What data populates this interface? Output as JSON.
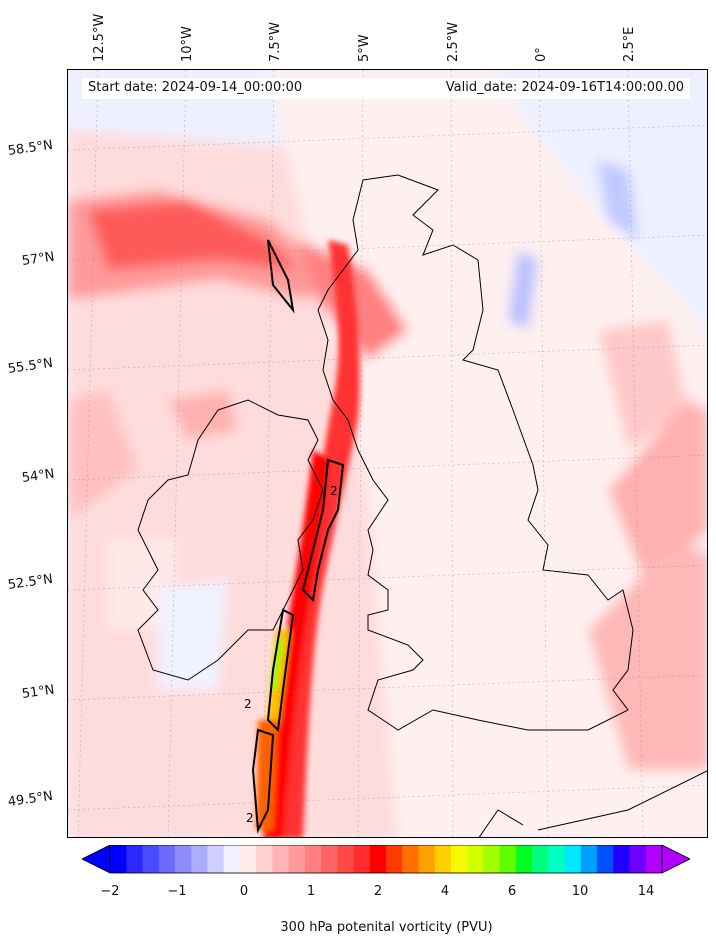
{
  "map": {
    "start_date": "Start date: 2024-09-14_00:00:00",
    "valid_date": "Valid_date: 2024-09-16T14:00:00.00",
    "lon_labels": [
      "12.5°W",
      "10°W",
      "7.5°W",
      "5°W",
      "2.5°W",
      "0°",
      "2.5°E"
    ],
    "lat_labels": [
      "58.5°N",
      "57°N",
      "55.5°N",
      "54°N",
      "52.5°N",
      "51°N",
      "49.5°N"
    ],
    "contour_labels": [
      "2",
      "2",
      "2"
    ]
  },
  "colorbar": {
    "title": "300 hPa potenital vorticity (PVU)",
    "tick_labels": [
      "−2",
      "−1",
      "0",
      "1",
      "2",
      "4",
      "6",
      "10",
      "14"
    ],
    "colors": [
      "#0000ff",
      "#2828ff",
      "#4a4aff",
      "#6b6bff",
      "#8c8cff",
      "#adadff",
      "#cfcfff",
      "#f0f0ff",
      "#ffeaea",
      "#ffd0d0",
      "#ffb5b5",
      "#ff9a9a",
      "#ff7f7f",
      "#ff6464",
      "#ff4949",
      "#ff2e2e",
      "#ff0000",
      "#ff3a00",
      "#ff7000",
      "#ffa000",
      "#ffd000",
      "#f8f800",
      "#d0ff00",
      "#a0ff00",
      "#60ff00",
      "#00ff20",
      "#00ff80",
      "#00ffc0",
      "#00e8ff",
      "#00a0ff",
      "#0050ff",
      "#2000ff",
      "#7000ff",
      "#b000ff"
    ]
  }
}
